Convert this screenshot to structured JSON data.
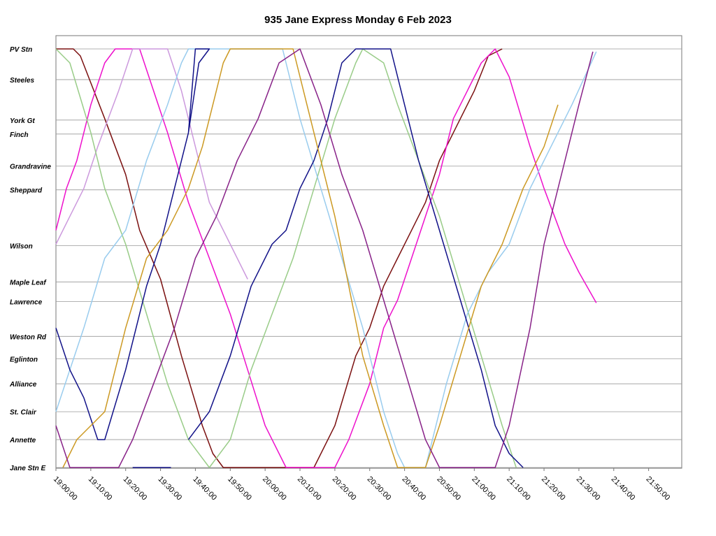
{
  "chart_data": {
    "type": "line",
    "title": "935 Jane Express Monday 6 Feb 2023",
    "xlabel": "",
    "ylabel": "",
    "x_range": [
      "19:00:00",
      "21:59:30"
    ],
    "x_ticks": [
      "19:00:00",
      "19:10:00",
      "19:20:00",
      "19:30:00",
      "19:40:00",
      "19:50:00",
      "20:00:00",
      "20:10:00",
      "20:20:00",
      "20:30:00",
      "20:40:00",
      "20:50:00",
      "21:00:00",
      "21:10:00",
      "21:20:00",
      "21:30:00",
      "21:40:00",
      "21:50:00"
    ],
    "grid": true,
    "legend": "none",
    "stops": [
      {
        "name": "PV Stn",
        "pos": 0
      },
      {
        "name": "Steeles",
        "pos": 2.2
      },
      {
        "name": "York Gt",
        "pos": 5.1
      },
      {
        "name": "Finch",
        "pos": 6.1
      },
      {
        "name": "Grandravine",
        "pos": 8.4
      },
      {
        "name": "Sheppard",
        "pos": 10.1
      },
      {
        "name": "Wilson",
        "pos": 14.1
      },
      {
        "name": "Maple Leaf",
        "pos": 16.7
      },
      {
        "name": "Lawrence",
        "pos": 18.1
      },
      {
        "name": "Weston Rd",
        "pos": 20.6
      },
      {
        "name": "Eglinton",
        "pos": 22.2
      },
      {
        "name": "Alliance",
        "pos": 24.0
      },
      {
        "name": "St. Clair",
        "pos": 26.0
      },
      {
        "name": "Annette",
        "pos": 28.0
      },
      {
        "name": "Jane Stn E",
        "pos": 30.0
      }
    ],
    "series": [
      {
        "color": "#7B1010",
        "points": [
          [
            "19:00:00",
            0
          ],
          [
            "19:05:00",
            0
          ],
          [
            "19:07:00",
            0.5
          ],
          [
            "19:14:00",
            5
          ],
          [
            "19:20:00",
            9
          ],
          [
            "19:24:00",
            13
          ],
          [
            "19:30:00",
            16.5
          ],
          [
            "19:36:00",
            22
          ],
          [
            "19:42:00",
            27
          ],
          [
            "19:45:00",
            29
          ],
          [
            "19:48:00",
            30
          ],
          [
            "20:14:00",
            30
          ],
          [
            "20:20:00",
            27
          ],
          [
            "20:26:00",
            22
          ],
          [
            "20:30:00",
            20
          ],
          [
            "20:34:00",
            17
          ],
          [
            "20:38:00",
            15
          ],
          [
            "20:42:00",
            13
          ],
          [
            "20:46:00",
            11
          ],
          [
            "20:50:00",
            8
          ],
          [
            "20:54:00",
            6
          ],
          [
            "21:00:00",
            3
          ],
          [
            "21:04:00",
            0.5
          ],
          [
            "21:08:00",
            0
          ]
        ]
      },
      {
        "color": "#EE10CC",
        "points": [
          [
            "19:00:00",
            13
          ],
          [
            "19:03:00",
            10
          ],
          [
            "19:06:00",
            8
          ],
          [
            "19:10:00",
            4
          ],
          [
            "19:14:00",
            1
          ],
          [
            "19:17:00",
            0
          ],
          [
            "19:24:00",
            0
          ],
          [
            "19:28:00",
            3
          ],
          [
            "19:32:00",
            6
          ],
          [
            "19:38:00",
            11
          ],
          [
            "19:44:00",
            15
          ],
          [
            "19:50:00",
            19
          ],
          [
            "19:55:00",
            23
          ],
          [
            "20:00:00",
            27
          ],
          [
            "20:06:00",
            30
          ],
          [
            "20:20:00",
            30
          ],
          [
            "20:24:00",
            28
          ],
          [
            "20:30:00",
            24
          ],
          [
            "20:34:00",
            20
          ],
          [
            "20:38:00",
            18
          ],
          [
            "20:42:00",
            15
          ],
          [
            "20:46:00",
            12
          ],
          [
            "20:50:00",
            9
          ],
          [
            "20:54:00",
            5
          ],
          [
            "20:58:00",
            3
          ],
          [
            "21:02:00",
            1
          ],
          [
            "21:06:00",
            0
          ],
          [
            "21:10:00",
            2
          ],
          [
            "21:16:00",
            7
          ],
          [
            "21:20:00",
            10
          ],
          [
            "21:26:00",
            14
          ],
          [
            "21:30:00",
            16
          ],
          [
            "21:35:00",
            18.2
          ]
        ]
      },
      {
        "color": "#CC99DD",
        "points": [
          [
            "19:00:00",
            14
          ],
          [
            "19:04:00",
            12
          ],
          [
            "19:08:00",
            10
          ],
          [
            "19:12:00",
            7
          ],
          [
            "19:18:00",
            3
          ],
          [
            "19:22:00",
            0
          ],
          [
            "19:32:00",
            0
          ],
          [
            "19:36:00",
            3
          ],
          [
            "19:40:00",
            7
          ],
          [
            "19:44:00",
            11
          ],
          [
            "19:50:00",
            14
          ],
          [
            "19:55:00",
            16.5
          ]
        ]
      },
      {
        "color": "#99CC88",
        "points": [
          [
            "19:00:00",
            0
          ],
          [
            "19:04:00",
            1
          ],
          [
            "19:10:00",
            6
          ],
          [
            "19:14:00",
            10
          ],
          [
            "19:20:00",
            14
          ],
          [
            "19:26:00",
            19
          ],
          [
            "19:32:00",
            24
          ],
          [
            "19:38:00",
            28
          ],
          [
            "19:44:00",
            30
          ],
          [
            "19:50:00",
            28
          ],
          [
            "19:56:00",
            23
          ],
          [
            "20:02:00",
            19
          ],
          [
            "20:08:00",
            15
          ],
          [
            "20:14:00",
            10
          ],
          [
            "20:20:00",
            5
          ],
          [
            "20:26:00",
            1
          ],
          [
            "20:28:00",
            0
          ],
          [
            "20:34:00",
            1
          ],
          [
            "20:38:00",
            4
          ],
          [
            "20:44:00",
            8
          ],
          [
            "20:50:00",
            12
          ],
          [
            "20:56:00",
            17
          ],
          [
            "21:02:00",
            22
          ],
          [
            "21:08:00",
            27
          ],
          [
            "21:12:00",
            30
          ]
        ]
      },
      {
        "color": "#99CCEE",
        "points": [
          [
            "19:00:00",
            26
          ],
          [
            "19:04:00",
            23
          ],
          [
            "19:08:00",
            20
          ],
          [
            "19:14:00",
            15
          ],
          [
            "19:20:00",
            13
          ],
          [
            "19:26:00",
            8
          ],
          [
            "19:32:00",
            4
          ],
          [
            "19:36:00",
            1
          ],
          [
            "19:38:00",
            0
          ],
          [
            "20:05:00",
            0
          ],
          [
            "20:10:00",
            5
          ],
          [
            "20:16:00",
            10
          ],
          [
            "20:22:00",
            15
          ],
          [
            "20:28:00",
            20
          ],
          [
            "20:34:00",
            26
          ],
          [
            "20:38:00",
            29
          ],
          [
            "20:40:00",
            30
          ],
          [
            "20:46:00",
            30
          ],
          [
            "20:52:00",
            24
          ],
          [
            "20:58:00",
            19
          ],
          [
            "21:04:00",
            16
          ],
          [
            "21:10:00",
            14
          ],
          [
            "21:16:00",
            10
          ],
          [
            "21:22:00",
            7
          ],
          [
            "21:28:00",
            4
          ],
          [
            "21:35:00",
            0.2
          ]
        ]
      },
      {
        "color": "#111188",
        "points": [
          [
            "19:00:00",
            20
          ],
          [
            "19:04:00",
            23
          ],
          [
            "19:08:00",
            25
          ],
          [
            "19:12:00",
            28
          ],
          [
            "19:14:00",
            28
          ],
          [
            "19:20:00",
            23
          ],
          [
            "19:26:00",
            17
          ],
          [
            "19:30:00",
            14
          ],
          [
            "19:34:00",
            10
          ],
          [
            "19:38:00",
            6
          ],
          [
            "19:41:00",
            1
          ],
          [
            "19:44:00",
            0
          ],
          [
            "19:40:00",
            0
          ],
          [
            "19:38:00",
            6
          ],
          [
            "19:34:00",
            10
          ],
          [
            "19:30:00",
            14
          ],
          [
            "19:26:00",
            17
          ],
          [
            "19:20:00",
            23
          ],
          [
            "19:14:00",
            28
          ],
          [
            "19:12:00",
            28
          ]
        ]
      },
      {
        "color": "#111188",
        "points": [
          [
            "19:22:00",
            30
          ],
          [
            "19:33:00",
            30
          ]
        ]
      },
      {
        "color": "#111188",
        "points": [
          [
            "19:38:00",
            28
          ],
          [
            "19:44:00",
            26
          ],
          [
            "19:50:00",
            22
          ],
          [
            "19:56:00",
            17
          ],
          [
            "20:02:00",
            14
          ],
          [
            "20:06:00",
            13
          ],
          [
            "20:10:00",
            10
          ],
          [
            "20:14:00",
            8
          ],
          [
            "20:18:00",
            5
          ],
          [
            "20:22:00",
            1
          ],
          [
            "20:26:00",
            0
          ],
          [
            "20:36:00",
            0
          ],
          [
            "20:40:00",
            4
          ],
          [
            "20:44:00",
            8
          ],
          [
            "20:50:00",
            13
          ],
          [
            "20:56:00",
            18
          ],
          [
            "21:02:00",
            23
          ],
          [
            "21:06:00",
            27
          ],
          [
            "21:10:00",
            29
          ],
          [
            "21:14:00",
            30
          ]
        ]
      },
      {
        "color": "#CC9922",
        "points": [
          [
            "19:02:00",
            30
          ],
          [
            "19:06:00",
            28
          ],
          [
            "19:10:00",
            27
          ],
          [
            "19:14:00",
            26
          ],
          [
            "19:20:00",
            20
          ],
          [
            "19:26:00",
            15
          ],
          [
            "19:32:00",
            13
          ],
          [
            "19:38:00",
            10
          ],
          [
            "19:42:00",
            7
          ],
          [
            "19:46:00",
            3
          ],
          [
            "19:48:00",
            1
          ],
          [
            "19:50:00",
            0
          ],
          [
            "20:08:00",
            0
          ],
          [
            "20:12:00",
            4
          ],
          [
            "20:16:00",
            8
          ],
          [
            "20:20:00",
            12
          ],
          [
            "20:24:00",
            17
          ],
          [
            "20:28:00",
            22
          ],
          [
            "20:34:00",
            27
          ],
          [
            "20:38:00",
            30
          ],
          [
            "20:46:00",
            30
          ],
          [
            "20:50:00",
            27
          ],
          [
            "20:56:00",
            22
          ],
          [
            "21:02:00",
            17
          ],
          [
            "21:08:00",
            14
          ],
          [
            "21:14:00",
            10
          ],
          [
            "21:20:00",
            7
          ],
          [
            "21:24:00",
            4
          ]
        ]
      },
      {
        "color": "#882288",
        "points": [
          [
            "19:00:00",
            27
          ],
          [
            "19:04:00",
            30
          ],
          [
            "19:18:00",
            30
          ],
          [
            "19:22:00",
            28
          ],
          [
            "19:28:00",
            24
          ],
          [
            "19:34:00",
            20
          ],
          [
            "19:40:00",
            15
          ],
          [
            "19:46:00",
            12
          ],
          [
            "19:52:00",
            8
          ],
          [
            "19:58:00",
            5
          ],
          [
            "20:04:00",
            1
          ],
          [
            "20:10:00",
            0
          ],
          [
            "20:16:00",
            4
          ],
          [
            "20:22:00",
            9
          ],
          [
            "20:28:00",
            13
          ],
          [
            "20:34:00",
            18
          ],
          [
            "20:40:00",
            23
          ],
          [
            "20:46:00",
            28
          ],
          [
            "20:50:00",
            30
          ],
          [
            "21:06:00",
            30
          ],
          [
            "21:10:00",
            27
          ],
          [
            "21:16:00",
            20
          ],
          [
            "21:20:00",
            14
          ],
          [
            "21:26:00",
            8
          ],
          [
            "21:30:00",
            4
          ],
          [
            "21:34:00",
            0.2
          ]
        ]
      }
    ]
  }
}
